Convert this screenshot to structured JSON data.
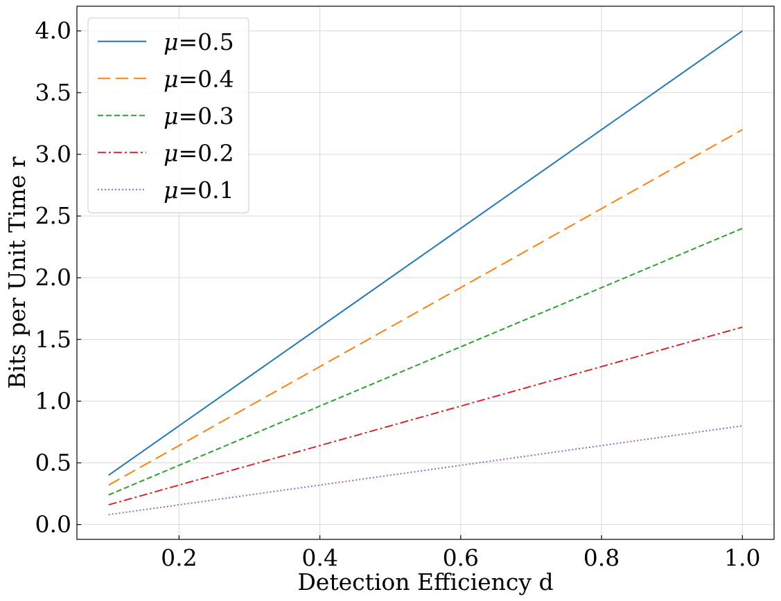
{
  "chart_data": {
    "type": "line",
    "title": "",
    "xlabel": "Detection Efficiency d",
    "ylabel": "Bits per Unit Time r",
    "xlim": [
      0.055,
      1.045
    ],
    "ylim": [
      -0.12,
      4.2
    ],
    "xticks": [
      0.2,
      0.4,
      0.6,
      0.8,
      1.0
    ],
    "xtick_labels": [
      "0.2",
      "0.4",
      "0.6",
      "0.8",
      "1.0"
    ],
    "yticks": [
      0.0,
      0.5,
      1.0,
      1.5,
      2.0,
      2.5,
      3.0,
      3.5,
      4.0
    ],
    "ytick_labels": [
      "0.0",
      "0.5",
      "1.0",
      "1.5",
      "2.0",
      "2.5",
      "3.0",
      "3.5",
      "4.0"
    ],
    "grid": true,
    "legend_position": "top-left",
    "x": [
      0.1,
      1.0
    ],
    "series": [
      {
        "name": "μ=0.5",
        "symbol": "μ",
        "value_label": "=0.5",
        "color": "#1f77b4",
        "dash": "solid",
        "values": [
          0.4,
          4.0
        ]
      },
      {
        "name": "μ=0.4",
        "symbol": "μ",
        "value_label": "=0.4",
        "color": "#ff7f0e",
        "dash": "long-dash",
        "values": [
          0.32,
          3.2
        ]
      },
      {
        "name": "μ=0.3",
        "symbol": "μ",
        "value_label": "=0.3",
        "color": "#2ca02c",
        "dash": "dash",
        "values": [
          0.24,
          2.4
        ]
      },
      {
        "name": "μ=0.2",
        "symbol": "μ",
        "value_label": "=0.2",
        "color": "#d62728",
        "dash": "dash-dot",
        "values": [
          0.16,
          1.6
        ]
      },
      {
        "name": "μ=0.1",
        "symbol": "μ",
        "value_label": "=0.1",
        "color": "#9467bd",
        "dash": "dot",
        "values": [
          0.08,
          0.8
        ]
      }
    ]
  }
}
